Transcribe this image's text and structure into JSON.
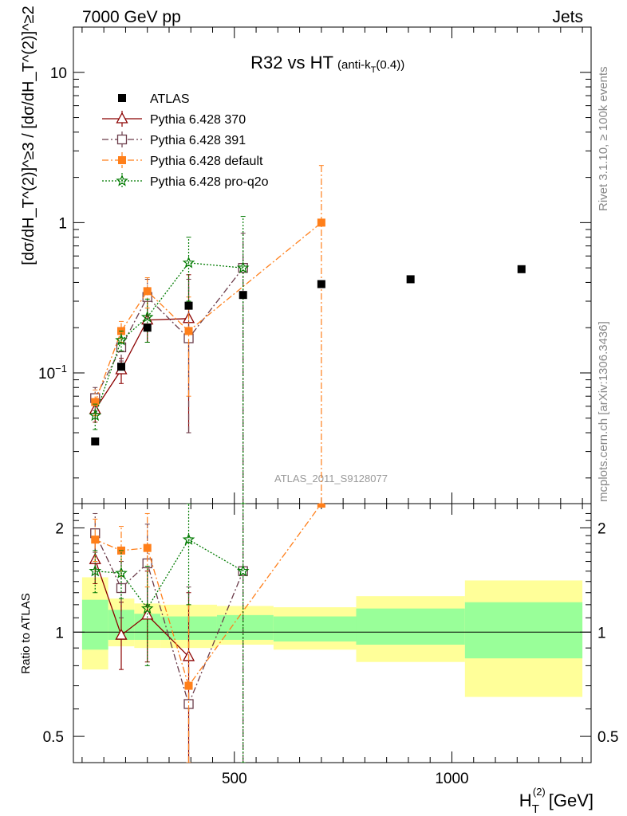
{
  "header": {
    "left": "7000 GeV pp",
    "right": "Jets"
  },
  "side_labels": {
    "rivet": "Rivet 3.1.10, ≥ 100k events",
    "mcplots": "mcplots.cern.ch [arXiv:1306.3436]"
  },
  "colors": {
    "ATLAS": "#000000",
    "Pythia 6.428 370": "#8b0000",
    "Pythia 6.428 391": "#6b3c4a",
    "Pythia 6.428 default": "#ff7f1a",
    "Pythia 6.428 pro-q2o": "#007a00",
    "band_inner": "#99ff99",
    "band_outer": "#ffff99"
  },
  "chart_data": [
    {
      "type": "scatter",
      "panel": "main",
      "title": "R32 vs HT",
      "title_suffix": "(anti-k_T(0.4))",
      "ylabel": "[dσ/dH_T^(2)]^≥3 / [dσ/dH_T^(2)]^≥2",
      "y_scale": "log",
      "ylim": [
        0.0135,
        20
      ],
      "y_ticks": [
        {
          "value": 0.1,
          "label": "10⁻¹"
        },
        {
          "value": 1,
          "label": "1"
        },
        {
          "value": 10,
          "label": "10"
        }
      ],
      "watermark": "ATLAS_2011_S9128077",
      "legend_position": "top-left",
      "series": [
        {
          "name": "ATLAS",
          "marker": "filled-square",
          "x": [
            180,
            240,
            300,
            395,
            520,
            700,
            905,
            1160
          ],
          "values": [
            0.035,
            0.11,
            0.2,
            0.28,
            0.33,
            0.39,
            0.42,
            0.49
          ]
        },
        {
          "name": "Pythia 6.428 370",
          "marker": "open-triangle",
          "line": "solid",
          "x": [
            180,
            240,
            300,
            395
          ],
          "values": [
            0.057,
            0.105,
            0.225,
            0.23
          ],
          "err_lo": [
            0.047,
            0.085,
            0.16,
            0.04
          ],
          "err_hi": [
            0.068,
            0.125,
            0.3,
            0.45
          ]
        },
        {
          "name": "Pythia 6.428 391",
          "marker": "open-square",
          "line": "dash-dot",
          "x": [
            180,
            240,
            300,
            395,
            520
          ],
          "values": [
            0.068,
            0.148,
            0.32,
            0.17,
            0.5
          ],
          "err_lo": [
            0.056,
            0.12,
            0.23,
            0.04,
            0.0135
          ],
          "err_hi": [
            0.08,
            0.18,
            0.42,
            0.42,
            0.85
          ]
        },
        {
          "name": "Pythia 6.428 default",
          "marker": "filled-square",
          "line": "dash-dot",
          "x": [
            180,
            240,
            300,
            395,
            700
          ],
          "values": [
            0.064,
            0.19,
            0.35,
            0.19,
            1.0
          ],
          "err_lo": [
            0.052,
            0.16,
            0.27,
            0.07,
            0.0135
          ],
          "err_hi": [
            0.077,
            0.22,
            0.43,
            0.32,
            2.4
          ]
        },
        {
          "name": "Pythia 6.428 pro-q2o",
          "marker": "open-star",
          "line": "dotted",
          "x": [
            180,
            240,
            300,
            395,
            520
          ],
          "values": [
            0.052,
            0.165,
            0.235,
            0.54,
            0.5
          ],
          "err_lo": [
            0.042,
            0.14,
            0.16,
            0.3,
            0.0135
          ],
          "err_hi": [
            0.062,
            0.19,
            0.31,
            0.8,
            1.1
          ]
        }
      ]
    },
    {
      "type": "scatter",
      "panel": "ratio",
      "ylabel": "Ratio to ATLAS",
      "xlabel": "H_T^(2) [GeV]",
      "y_scale": "log",
      "ylim": [
        0.42,
        2.35
      ],
      "xlim": [
        130,
        1320
      ],
      "x_ticks": [
        500,
        1000
      ],
      "y_ticks": [
        0.5,
        1,
        2
      ],
      "bands": [
        {
          "x0": 150,
          "x1": 210,
          "inner": [
            0.89,
            1.24
          ],
          "outer": [
            0.78,
            1.44
          ]
        },
        {
          "x0": 210,
          "x1": 270,
          "inner": [
            0.95,
            1.16
          ],
          "outer": [
            0.91,
            1.25
          ]
        },
        {
          "x0": 270,
          "x1": 330,
          "inner": [
            0.95,
            1.13
          ],
          "outer": [
            0.9,
            1.21
          ]
        },
        {
          "x0": 330,
          "x1": 460,
          "inner": [
            0.95,
            1.11
          ],
          "outer": [
            0.9,
            1.2
          ]
        },
        {
          "x0": 460,
          "x1": 590,
          "inner": [
            0.95,
            1.12
          ],
          "outer": [
            0.92,
            1.19
          ]
        },
        {
          "x0": 590,
          "x1": 780,
          "inner": [
            0.94,
            1.11
          ],
          "outer": [
            0.89,
            1.18
          ]
        },
        {
          "x0": 780,
          "x1": 1030,
          "inner": [
            0.92,
            1.17
          ],
          "outer": [
            0.82,
            1.27
          ]
        },
        {
          "x0": 1030,
          "x1": 1300,
          "inner": [
            0.84,
            1.22
          ],
          "outer": [
            0.65,
            1.41
          ]
        }
      ],
      "series": [
        {
          "name": "Pythia 6.428 370",
          "x": [
            180,
            240,
            300,
            395
          ],
          "values": [
            1.62,
            0.98,
            1.12,
            0.85
          ],
          "err_lo": [
            1.38,
            0.78,
            0.82,
            0.42
          ],
          "err_hi": [
            1.85,
            1.22,
            1.5,
            1.3
          ]
        },
        {
          "name": "Pythia 6.428 391",
          "x": [
            180,
            240,
            300,
            395,
            520
          ],
          "values": [
            1.93,
            1.34,
            1.58,
            0.62,
            1.5
          ],
          "err_lo": [
            1.7,
            1.1,
            1.2,
            0.42,
            0.42
          ],
          "err_hi": [
            2.2,
            1.6,
            2.05,
            1.35,
            2.35
          ]
        },
        {
          "name": "Pythia 6.428 default",
          "x": [
            180,
            240,
            300,
            395,
            700
          ],
          "values": [
            1.85,
            1.72,
            1.75,
            0.7,
            2.35
          ],
          "err_lo": [
            1.6,
            1.45,
            1.35,
            0.42,
            2.35
          ],
          "err_hi": [
            2.12,
            2.02,
            2.2,
            1.2,
            2.35
          ]
        },
        {
          "name": "Pythia 6.428 pro-q2o",
          "x": [
            180,
            240,
            300,
            395,
            520
          ],
          "values": [
            1.5,
            1.48,
            1.17,
            1.85,
            1.5
          ],
          "err_lo": [
            1.3,
            1.25,
            0.8,
            1.2,
            0.42
          ],
          "err_hi": [
            1.72,
            1.72,
            1.55,
            2.35,
            2.35
          ]
        }
      ]
    }
  ]
}
